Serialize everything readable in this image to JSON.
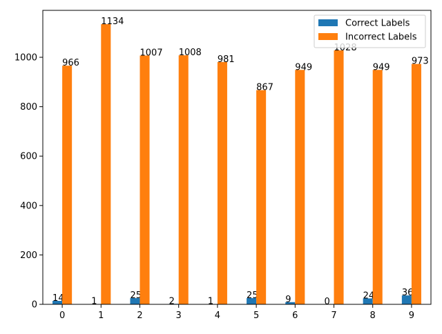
{
  "chart_data": {
    "type": "bar",
    "categories": [
      "0",
      "1",
      "2",
      "3",
      "4",
      "5",
      "6",
      "7",
      "8",
      "9"
    ],
    "series": [
      {
        "name": "Correct Labels",
        "color": "#1f77b4",
        "values": [
          14,
          1,
          25,
          2,
          1,
          25,
          9,
          0,
          24,
          36
        ]
      },
      {
        "name": "Incorrect Labels",
        "color": "#ff7f0e",
        "values": [
          966,
          1134,
          1007,
          1008,
          981,
          867,
          949,
          1028,
          949,
          973
        ]
      }
    ],
    "title": "",
    "xlabel": "",
    "ylabel": "",
    "ylim": [
      0,
      1190
    ],
    "yticks": [
      0,
      200,
      400,
      600,
      800,
      1000
    ],
    "grid": false,
    "legend": "top-right"
  }
}
